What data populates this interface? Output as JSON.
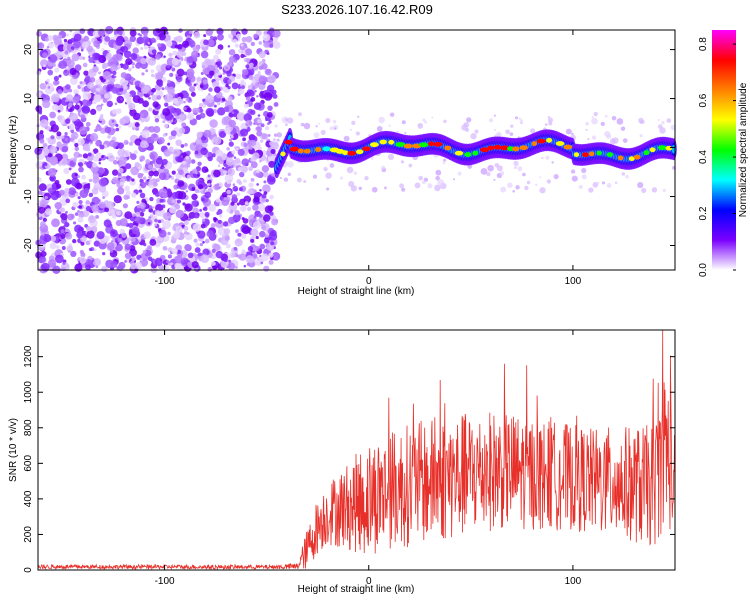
{
  "title": "S233.2026.107.16.42.R09",
  "chart_data": [
    {
      "type": "heatmap",
      "xlabel": "Height of straight line (km)",
      "ylabel": "Frequency (Hz)",
      "xlim": [
        -162,
        150
      ],
      "ylim": [
        -25,
        24
      ],
      "x_ticks": [
        -100,
        0,
        100
      ],
      "y_ticks": [
        -20,
        -10,
        0,
        10,
        20
      ],
      "noise_region_x_end": -45,
      "signal_band_center_hz": 0,
      "colorbar": {
        "label": "Normalized spectral amplitude",
        "range": [
          0.0,
          0.85
        ],
        "ticks": [
          "0.0",
          "0.2",
          "0.4",
          "0.6",
          "0.8"
        ],
        "tick_values": [
          0.0,
          0.2,
          0.4,
          0.6,
          0.8
        ],
        "colors": [
          "#ffffff",
          "#7a00ff",
          "#0000ff",
          "#00ffff",
          "#00ff00",
          "#ffff00",
          "#ff8000",
          "#ff0000",
          "#ff00ff"
        ]
      }
    },
    {
      "type": "line",
      "xlabel": "Height of straight line (km)",
      "ylabel": "SNR (10 * v/v)",
      "xlim": [
        -162,
        150
      ],
      "ylim": [
        0,
        1350
      ],
      "x_ticks": [
        -100,
        0,
        100
      ],
      "y_ticks": [
        0,
        200,
        400,
        600,
        800,
        1000,
        1200
      ],
      "color": "#e8302a",
      "series": [
        {
          "name": "SNR",
          "x": [
            -162,
            -140,
            -120,
            -100,
            -80,
            -60,
            -45,
            -35,
            -30,
            -25,
            -20,
            -10,
            0,
            10,
            20,
            30,
            40,
            50,
            60,
            70,
            80,
            90,
            100,
            110,
            120,
            130,
            140,
            145,
            148,
            150
          ],
          "mean": [
            18,
            18,
            18,
            18,
            17,
            17,
            17,
            20,
            120,
            250,
            320,
            360,
            400,
            450,
            480,
            500,
            520,
            540,
            560,
            560,
            540,
            530,
            520,
            500,
            490,
            480,
            470,
            700,
            600,
            450
          ],
          "spread": [
            12,
            12,
            12,
            12,
            12,
            12,
            12,
            20,
            120,
            160,
            180,
            250,
            330,
            330,
            350,
            350,
            360,
            350,
            340,
            330,
            320,
            310,
            300,
            300,
            320,
            330,
            350,
            450,
            400,
            300
          ]
        }
      ]
    }
  ]
}
